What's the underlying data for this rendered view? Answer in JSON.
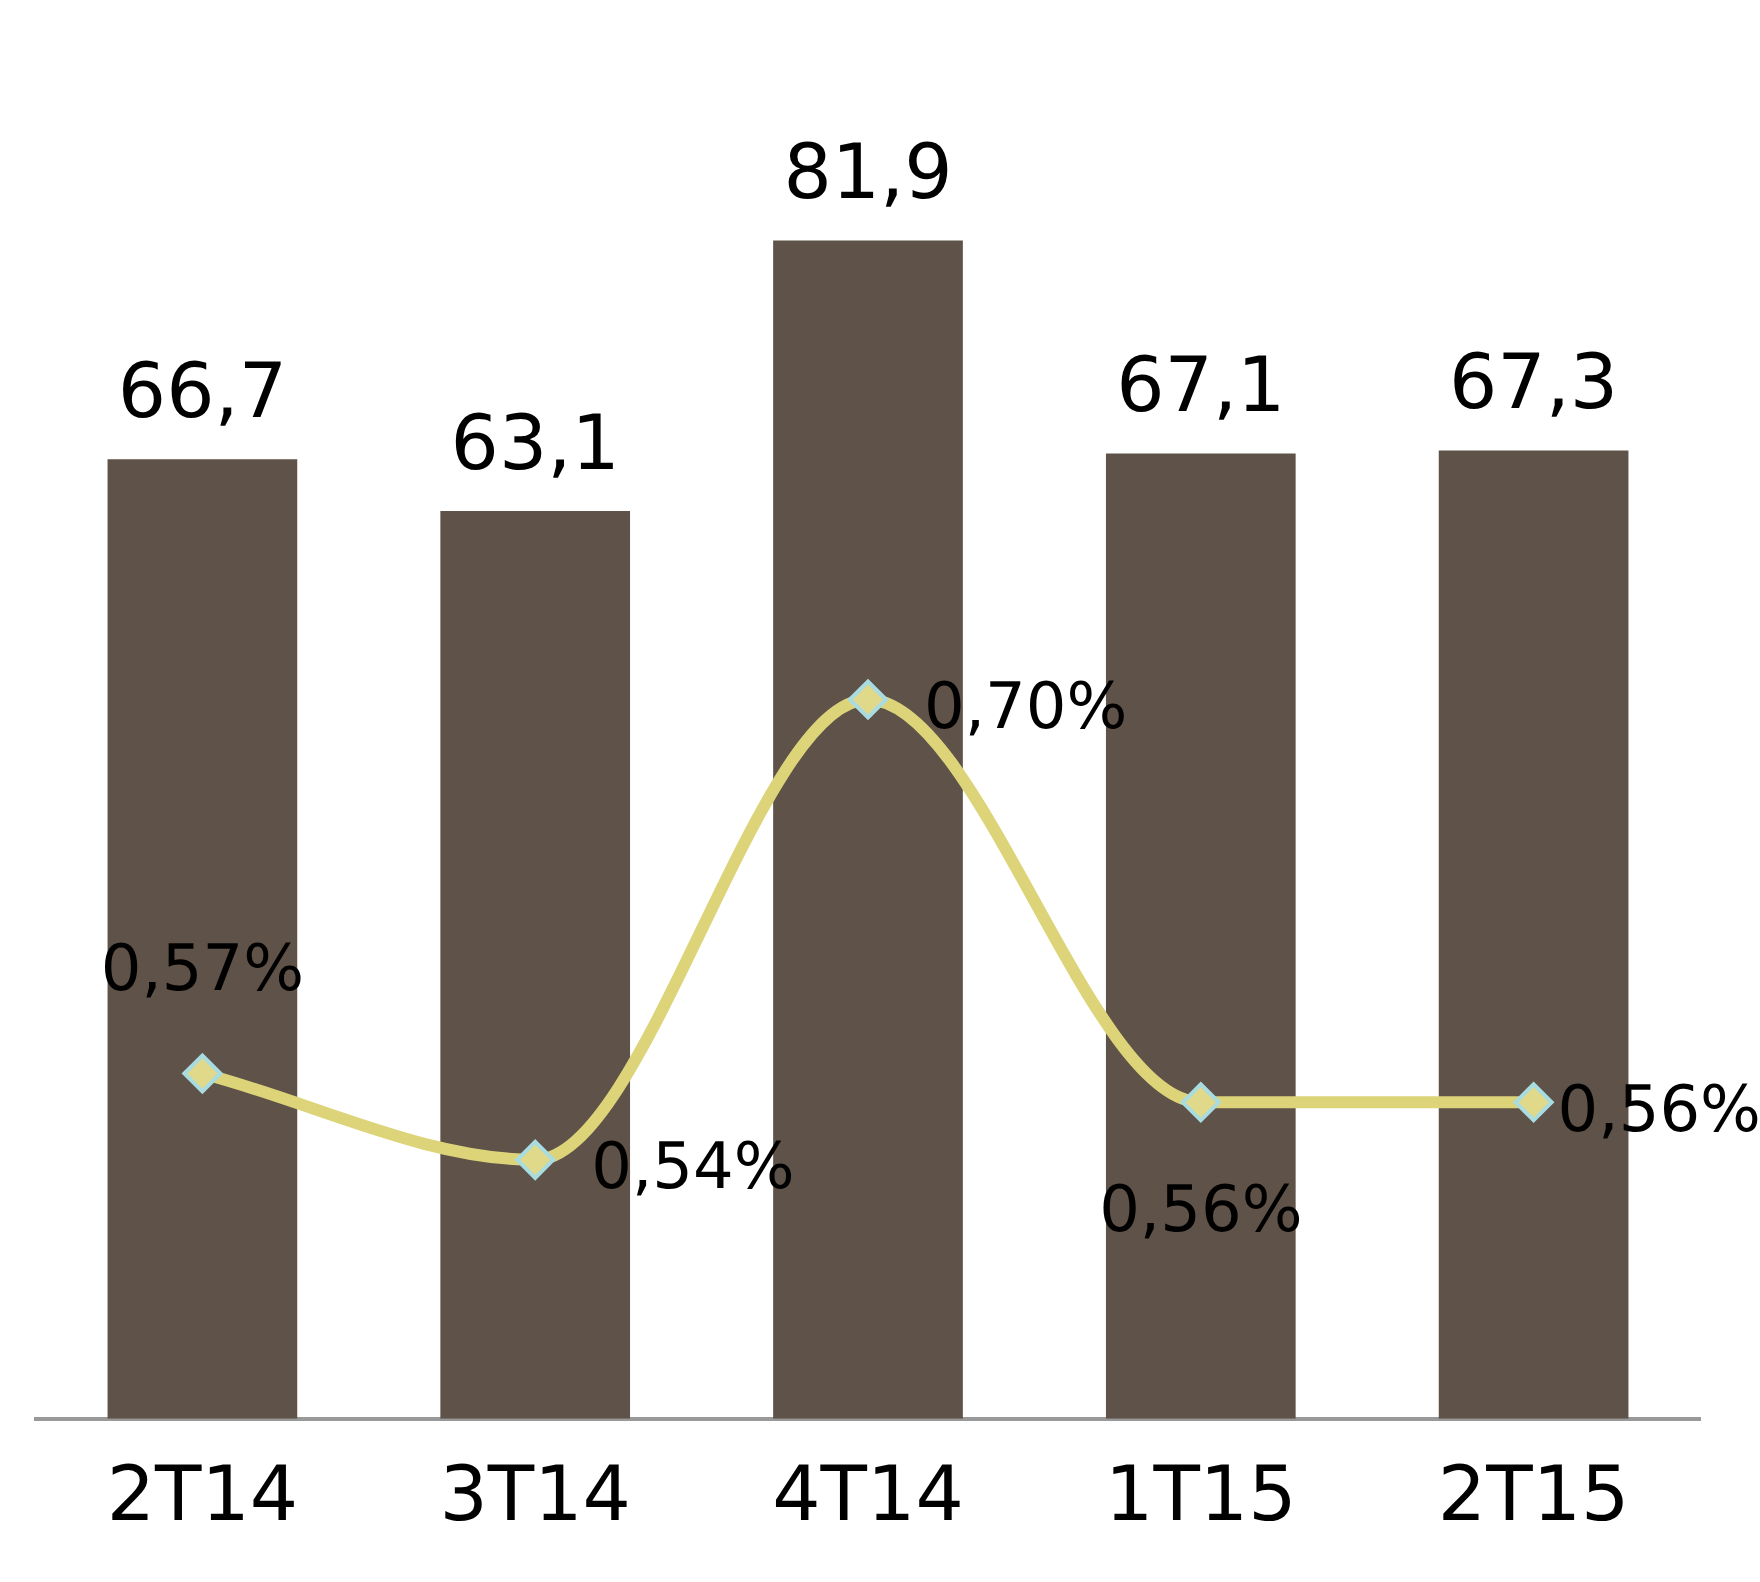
{
  "chart_data": {
    "type": "bar",
    "categories": [
      "2T14",
      "3T14",
      "4T14",
      "1T15",
      "2T15"
    ],
    "series": [
      {
        "color": "#5f5248",
        "values": [
          66.7,
          63.1,
          81.9,
          67.1,
          67.3
        ],
        "value_labels": [
          "66,7",
          "63,1",
          "81,9",
          "67,1",
          "67,3"
        ]
      },
      {
        "type": "line",
        "axis": "y2",
        "color": "#ddd47a",
        "marker": "diamond",
        "line_style": "solid",
        "values": [
          0.57,
          0.54,
          0.7,
          0.56,
          0.56
        ],
        "value_labels": [
          "0,57%",
          "0,54%",
          "0,70%",
          "0,56%",
          "0,56%"
        ]
      }
    ],
    "tick_labels": "x",
    "grid": false,
    "legend": false
  }
}
